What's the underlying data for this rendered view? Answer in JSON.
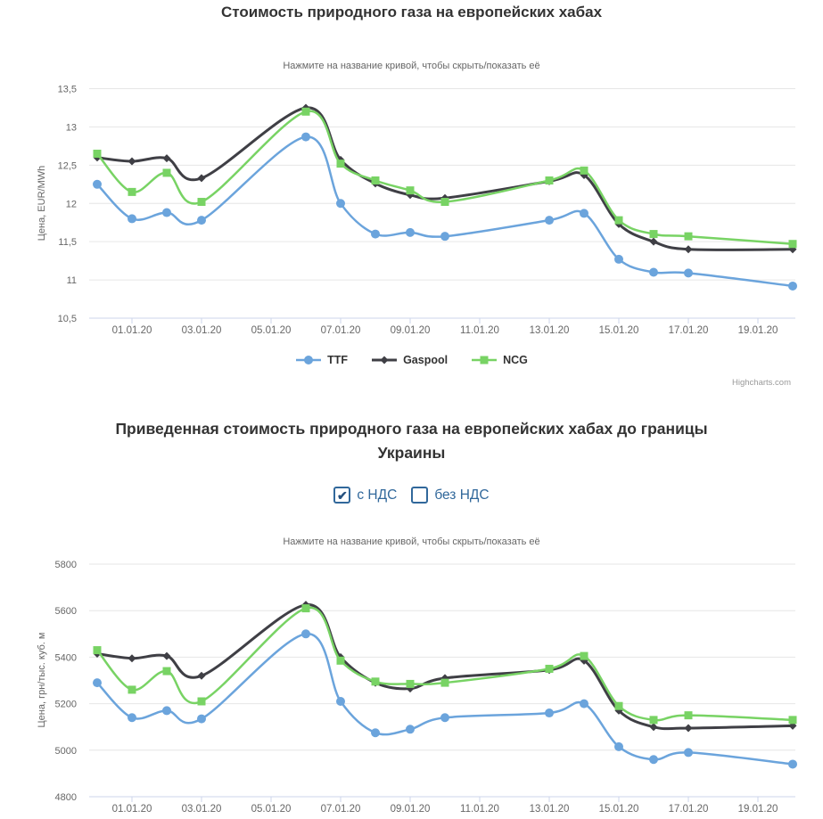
{
  "credits": {
    "label": "Highcharts.com"
  },
  "vat_controls": {
    "options": [
      {
        "label": "с НДС",
        "checked": true
      },
      {
        "label": "без НДС",
        "checked": false
      }
    ]
  },
  "chart_data": [
    {
      "type": "line",
      "title": "Стоимость природного газа на европейских хабах",
      "subtitle": "Нажмите на название кривой, чтобы скрыть/показать её",
      "xlabel": "",
      "ylabel": "Цена, EUR/MWh",
      "ylim": [
        10.5,
        13.5
      ],
      "grid": true,
      "legend_position": "bottom",
      "yticks": [
        10.5,
        11,
        11.5,
        12,
        12.5,
        13,
        13.5
      ],
      "ytick_labels": [
        "10,5",
        "11",
        "11,5",
        "12",
        "12,5",
        "13",
        "13,5"
      ],
      "x": [
        "31.12.19",
        "01.01.20",
        "02.01.20",
        "03.01.20",
        "06.01.20",
        "07.01.20",
        "08.01.20",
        "09.01.20",
        "10.01.20",
        "13.01.20",
        "14.01.20",
        "15.01.20",
        "16.01.20",
        "17.01.20",
        "20.01.20"
      ],
      "day_offsets": [
        0,
        1,
        2,
        3,
        6,
        7,
        8,
        9,
        10,
        13,
        14,
        15,
        16,
        17,
        20
      ],
      "xticks": [
        {
          "label": "01.01.20",
          "day": 1
        },
        {
          "label": "03.01.20",
          "day": 3
        },
        {
          "label": "05.01.20",
          "day": 5
        },
        {
          "label": "07.01.20",
          "day": 7
        },
        {
          "label": "09.01.20",
          "day": 9
        },
        {
          "label": "11.01.20",
          "day": 11
        },
        {
          "label": "13.01.20",
          "day": 13
        },
        {
          "label": "15.01.20",
          "day": 15
        },
        {
          "label": "17.01.20",
          "day": 17
        },
        {
          "label": "19.01.20",
          "day": 19
        }
      ],
      "series": [
        {
          "name": "TTF",
          "marker": "circle",
          "color": "#6ba4dc",
          "values": [
            12.25,
            11.8,
            11.88,
            11.78,
            12.87,
            12.0,
            11.6,
            11.62,
            11.57,
            11.78,
            11.87,
            11.27,
            11.1,
            11.09,
            10.92
          ]
        },
        {
          "name": "Gaspool",
          "marker": "diamond",
          "color": "#3f3f45",
          "values": [
            12.6,
            12.55,
            12.59,
            12.33,
            13.25,
            12.57,
            12.26,
            12.11,
            12.07,
            12.29,
            12.37,
            11.73,
            11.5,
            11.4,
            11.4
          ]
        },
        {
          "name": "NCG",
          "marker": "square",
          "color": "#78d364",
          "values": [
            12.65,
            12.15,
            12.4,
            12.02,
            13.2,
            12.52,
            12.3,
            12.17,
            12.02,
            12.3,
            12.43,
            11.78,
            11.6,
            11.57,
            11.47
          ]
        }
      ]
    },
    {
      "type": "line",
      "title": "Приведенная стоимость природного газа на европейских хабах до границы Украины",
      "subtitle": "Нажмите на название кривой, чтобы скрыть/показать её",
      "xlabel": "",
      "ylabel": "Цена, грн/тыс. куб. м",
      "ylim": [
        4800,
        5800
      ],
      "grid": true,
      "legend_position": "none",
      "yticks": [
        4800,
        5000,
        5200,
        5400,
        5600,
        5800
      ],
      "ytick_labels": [
        "4800",
        "5000",
        "5200",
        "5400",
        "5600",
        "5800"
      ],
      "x": [
        "31.12.19",
        "01.01.20",
        "02.01.20",
        "03.01.20",
        "06.01.20",
        "07.01.20",
        "08.01.20",
        "09.01.20",
        "10.01.20",
        "13.01.20",
        "14.01.20",
        "15.01.20",
        "16.01.20",
        "17.01.20",
        "20.01.20"
      ],
      "day_offsets": [
        0,
        1,
        2,
        3,
        6,
        7,
        8,
        9,
        10,
        13,
        14,
        15,
        16,
        17,
        20
      ],
      "xticks": [
        {
          "label": "01.01.20",
          "day": 1
        },
        {
          "label": "03.01.20",
          "day": 3
        },
        {
          "label": "05.01.20",
          "day": 5
        },
        {
          "label": "07.01.20",
          "day": 7
        },
        {
          "label": "09.01.20",
          "day": 9
        },
        {
          "label": "11.01.20",
          "day": 11
        },
        {
          "label": "13.01.20",
          "day": 13
        },
        {
          "label": "15.01.20",
          "day": 15
        },
        {
          "label": "17.01.20",
          "day": 17
        },
        {
          "label": "19.01.20",
          "day": 19
        }
      ],
      "series": [
        {
          "name": "TTF",
          "marker": "circle",
          "color": "#6ba4dc",
          "values": [
            5290,
            5140,
            5170,
            5135,
            5500,
            5210,
            5075,
            5090,
            5140,
            5160,
            5200,
            5015,
            4960,
            4990,
            4940
          ]
        },
        {
          "name": "Gaspool",
          "marker": "diamond",
          "color": "#3f3f45",
          "values": [
            5415,
            5395,
            5405,
            5320,
            5625,
            5400,
            5290,
            5265,
            5310,
            5345,
            5385,
            5170,
            5100,
            5095,
            5105
          ]
        },
        {
          "name": "NCG",
          "marker": "square",
          "color": "#78d364",
          "values": [
            5430,
            5260,
            5340,
            5210,
            5610,
            5385,
            5295,
            5285,
            5290,
            5350,
            5405,
            5190,
            5130,
            5150,
            5130
          ]
        }
      ]
    }
  ],
  "colors": {
    "ttf": "#6ba4dc",
    "gaspool": "#3f3f45",
    "ncg": "#78d364",
    "gridline": "#e6e6e6",
    "axis_line": "#ccd6eb",
    "axis_text": "#666666",
    "title_text": "#333333",
    "vat_accent": "#31689b"
  }
}
